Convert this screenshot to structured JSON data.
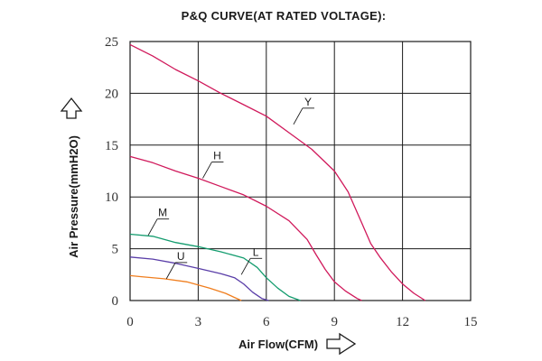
{
  "chart_data": {
    "type": "line",
    "title": "P&Q CURVE(AT RATED VOLTAGE):",
    "xlabel": "Air Flow(CFM)",
    "ylabel": "Air Pressure(mmH2O)",
    "xlim": [
      0,
      15
    ],
    "ylim": [
      0,
      25
    ],
    "xticks": [
      0,
      3,
      6,
      9,
      12,
      15
    ],
    "yticks": [
      0,
      5,
      10,
      15,
      20,
      25
    ],
    "grid": true,
    "series": [
      {
        "name": "Y",
        "color": "#d0195b",
        "x": [
          0,
          1,
          2,
          3,
          4,
          5,
          6,
          7,
          8,
          9,
          9.6,
          10.2,
          10.6,
          11,
          11.5,
          12,
          12.5,
          13
        ],
        "y": [
          24.7,
          23.6,
          22.3,
          21.2,
          20,
          18.9,
          17.8,
          16.2,
          14.6,
          12.5,
          10.5,
          7.5,
          5.5,
          4.2,
          2.8,
          1.6,
          0.7,
          0
        ]
      },
      {
        "name": "H",
        "color": "#d0195b",
        "x": [
          0,
          1,
          2,
          3,
          4,
          5,
          6,
          7,
          7.8,
          8.2,
          8.6,
          9,
          9.5,
          10,
          10.2
        ],
        "y": [
          13.9,
          13.3,
          12.5,
          11.8,
          11,
          10.2,
          9.1,
          7.7,
          5.9,
          4.4,
          3,
          1.8,
          0.9,
          0.2,
          0
        ]
      },
      {
        "name": "M",
        "color": "#139c6e",
        "x": [
          0,
          1,
          2,
          3,
          4,
          5,
          5.6,
          6,
          6.5,
          7,
          7.5
        ],
        "y": [
          6.4,
          6.2,
          5.6,
          5.2,
          4.7,
          4.1,
          3.2,
          2.2,
          1.2,
          0.4,
          0
        ]
      },
      {
        "name": "L",
        "color": "#5a3ea8",
        "x": [
          0,
          1,
          2,
          3,
          4,
          4.6,
          5,
          5.4,
          5.8,
          6.1
        ],
        "y": [
          4.2,
          4,
          3.6,
          3.1,
          2.6,
          2.2,
          1.6,
          0.8,
          0.2,
          0
        ]
      },
      {
        "name": "U",
        "color": "#f07e1e",
        "x": [
          0,
          0.5,
          1.5,
          2.5,
          3.5,
          4.2,
          4.6,
          4.9
        ],
        "y": [
          2.4,
          2.3,
          2.1,
          1.8,
          1.2,
          0.7,
          0.3,
          0
        ]
      }
    ],
    "series_labels": [
      {
        "name": "Y",
        "text": "Y",
        "at": [
          7.2,
          17
        ]
      },
      {
        "name": "H",
        "text": "H",
        "at": [
          3.2,
          11.8
        ]
      },
      {
        "name": "M",
        "text": "M",
        "at": [
          0.8,
          6.3
        ]
      },
      {
        "name": "L",
        "text": "L",
        "at": [
          4.9,
          2.5
        ]
      },
      {
        "name": "U",
        "text": "U",
        "at": [
          1.6,
          2.1
        ]
      }
    ]
  }
}
